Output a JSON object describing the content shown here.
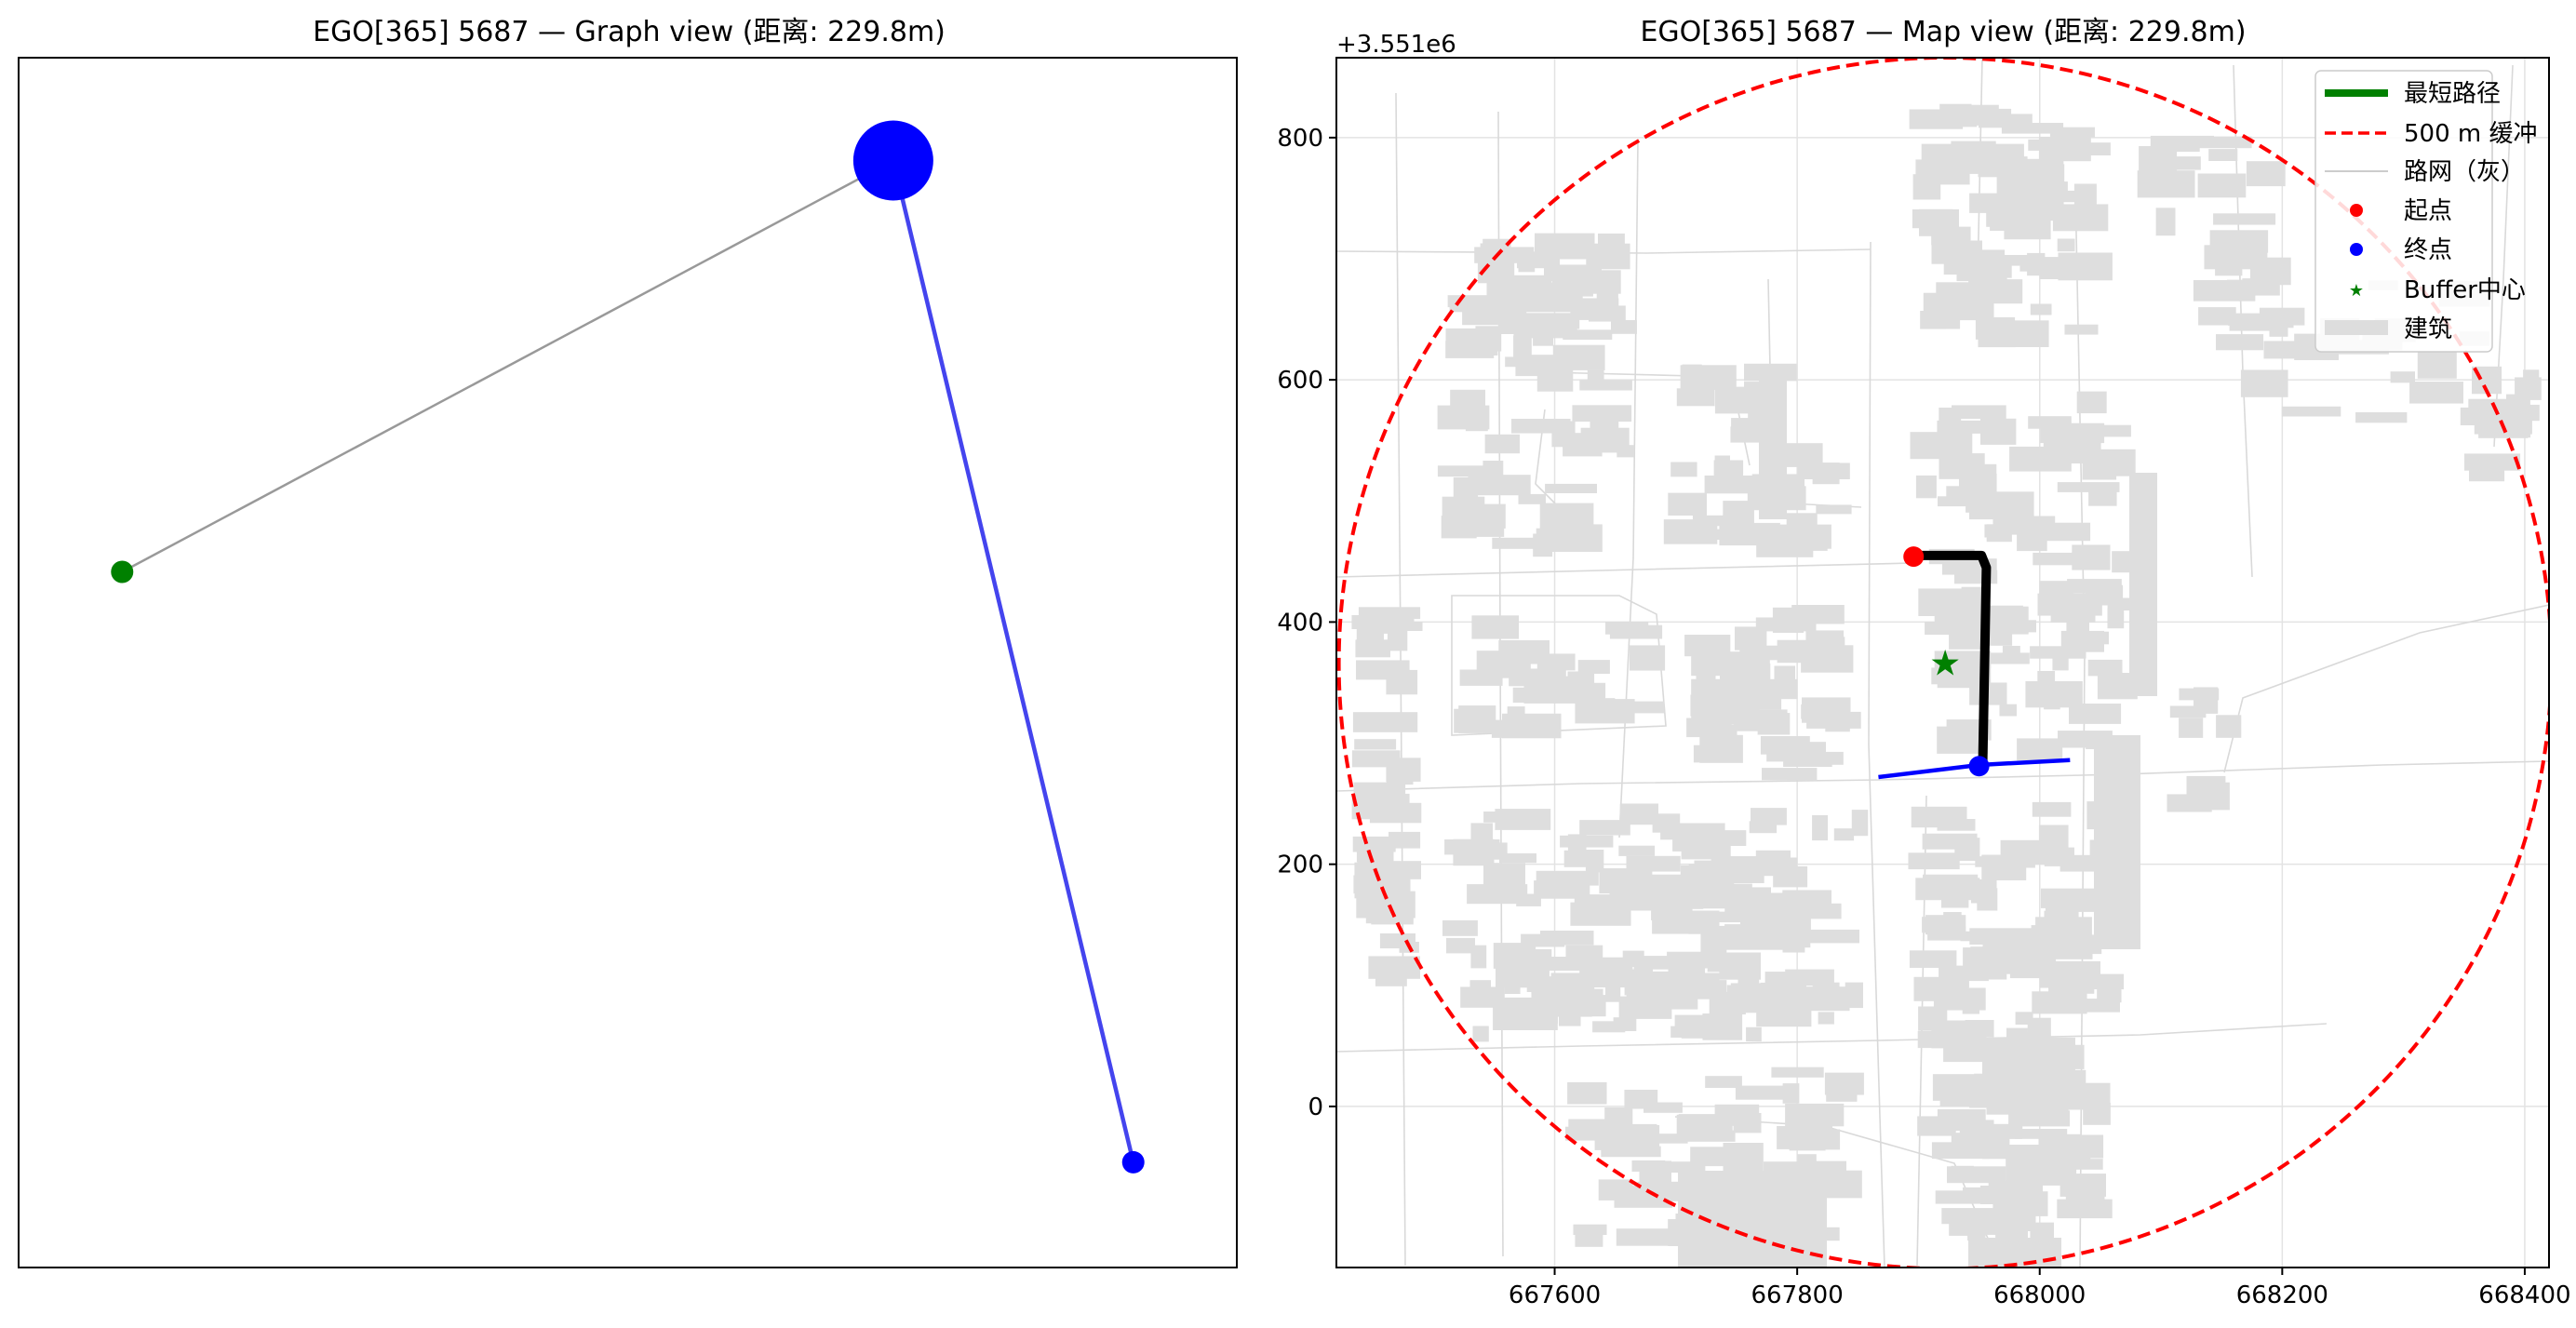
{
  "colors": {
    "route": "#000000",
    "buffer_circle": "#ff0000",
    "origin": "#ff0000",
    "destination": "#0000ff",
    "buffer_center": "#008000",
    "graph_edge_gray": "#999999",
    "graph_edge_blue": "#4444ee",
    "road_lines": "#d9d9d9",
    "buildings": "#dedede",
    "blue_segment": "#0000ff"
  },
  "chart_data": [
    {
      "type": "scatter",
      "title": "EGO[365] 5687 — Graph view (距离: 229.8m)",
      "nodes": [
        {
          "id": "green",
          "color": "#008000",
          "x": 0.085,
          "y": 0.575,
          "size": 1
        },
        {
          "id": "big-blue",
          "color": "#0000ff",
          "x": 0.718,
          "y": 0.915,
          "size": 4
        },
        {
          "id": "small-blue",
          "color": "#0000ff",
          "x": 0.915,
          "y": 0.087,
          "size": 1
        }
      ],
      "edges": [
        {
          "from": "green",
          "to": "big-blue",
          "color": "#999999"
        },
        {
          "from": "big-blue",
          "to": "small-blue",
          "color": "#4444ee"
        }
      ],
      "xlim": [
        0,
        1
      ],
      "ylim": [
        0,
        1
      ],
      "axes_visible": false
    },
    {
      "type": "scatter",
      "title": "EGO[365] 5687 — Map view (距离: 229.8m)",
      "offset_label": "+3.551e6",
      "xlim": [
        667420,
        668420
      ],
      "ylim": [
        -133,
        866
      ],
      "xticks": [
        667600,
        667800,
        668000,
        668200,
        668400
      ],
      "yticks": [
        0,
        200,
        400,
        600,
        800
      ],
      "xtick_labels": [
        "667600",
        "667800",
        "668000",
        "668200",
        "668400"
      ],
      "ytick_labels": [
        "0",
        "200",
        "400",
        "600",
        "800"
      ],
      "grid": true,
      "buffer_circle": {
        "center": [
          667922,
          366
        ],
        "radius": 500
      },
      "route": [
        [
          667897,
          455
        ],
        [
          667952,
          455
        ],
        [
          667956,
          445
        ],
        [
          667953,
          282
        ]
      ],
      "blue_segment": [
        [
          667867,
          272
        ],
        [
          667950,
          282
        ],
        [
          668025,
          286
        ]
      ],
      "origin": [
        667896,
        454
      ],
      "destination": [
        667950,
        281
      ],
      "buffer_center": [
        667922,
        366
      ],
      "legend": {
        "placement": "top-right",
        "entries": [
          "最短路径",
          "500 m 缓冲",
          "路网（灰）",
          "起点",
          "终点",
          "Buffer中心",
          "建筑"
        ]
      }
    }
  ]
}
